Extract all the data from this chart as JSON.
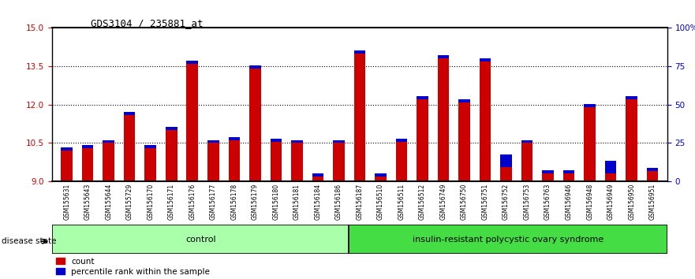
{
  "title": "GDS3104 / 235881_at",
  "samples": [
    "GSM155631",
    "GSM155643",
    "GSM155644",
    "GSM155729",
    "GSM156170",
    "GSM156171",
    "GSM156176",
    "GSM156177",
    "GSM156178",
    "GSM156179",
    "GSM156180",
    "GSM156181",
    "GSM156184",
    "GSM156186",
    "GSM156187",
    "GSM156510",
    "GSM156511",
    "GSM156512",
    "GSM156749",
    "GSM156750",
    "GSM156751",
    "GSM156752",
    "GSM156753",
    "GSM156763",
    "GSM156946",
    "GSM156948",
    "GSM156949",
    "GSM156950",
    "GSM156951"
  ],
  "red_values": [
    10.2,
    10.3,
    10.5,
    11.6,
    10.3,
    11.0,
    13.6,
    10.5,
    10.6,
    13.4,
    10.55,
    10.5,
    9.2,
    10.5,
    14.0,
    9.2,
    10.55,
    12.2,
    13.8,
    12.1,
    13.7,
    9.55,
    10.5,
    9.3,
    9.3,
    11.9,
    9.3,
    12.2,
    9.4
  ],
  "blue_heights": [
    0.12,
    0.12,
    0.12,
    0.12,
    0.12,
    0.12,
    0.12,
    0.12,
    0.12,
    0.12,
    0.12,
    0.12,
    0.12,
    0.12,
    0.12,
    0.12,
    0.12,
    0.12,
    0.12,
    0.12,
    0.12,
    0.5,
    0.12,
    0.12,
    0.12,
    0.12,
    0.5,
    0.12,
    0.12
  ],
  "group_labels": [
    "control",
    "insulin-resistant polycystic ovary syndrome"
  ],
  "group_sizes": [
    14,
    15
  ],
  "disease_state_label": "disease state",
  "y_min": 9.0,
  "y_max": 15.0,
  "y_ticks": [
    9,
    10.5,
    12,
    13.5,
    15
  ],
  "right_y_ticks": [
    0,
    25,
    50,
    75,
    100
  ],
  "right_y_tick_labels": [
    "0",
    "25",
    "50",
    "75",
    "100%"
  ],
  "red_color": "#CC0000",
  "blue_color": "#0000CC",
  "bar_width": 0.55,
  "bg_color": "#CCCCCC",
  "control_bg": "#AAFFAA",
  "disease_bg": "#44DD44",
  "legend_count": "count",
  "legend_percentile": "percentile rank within the sample"
}
